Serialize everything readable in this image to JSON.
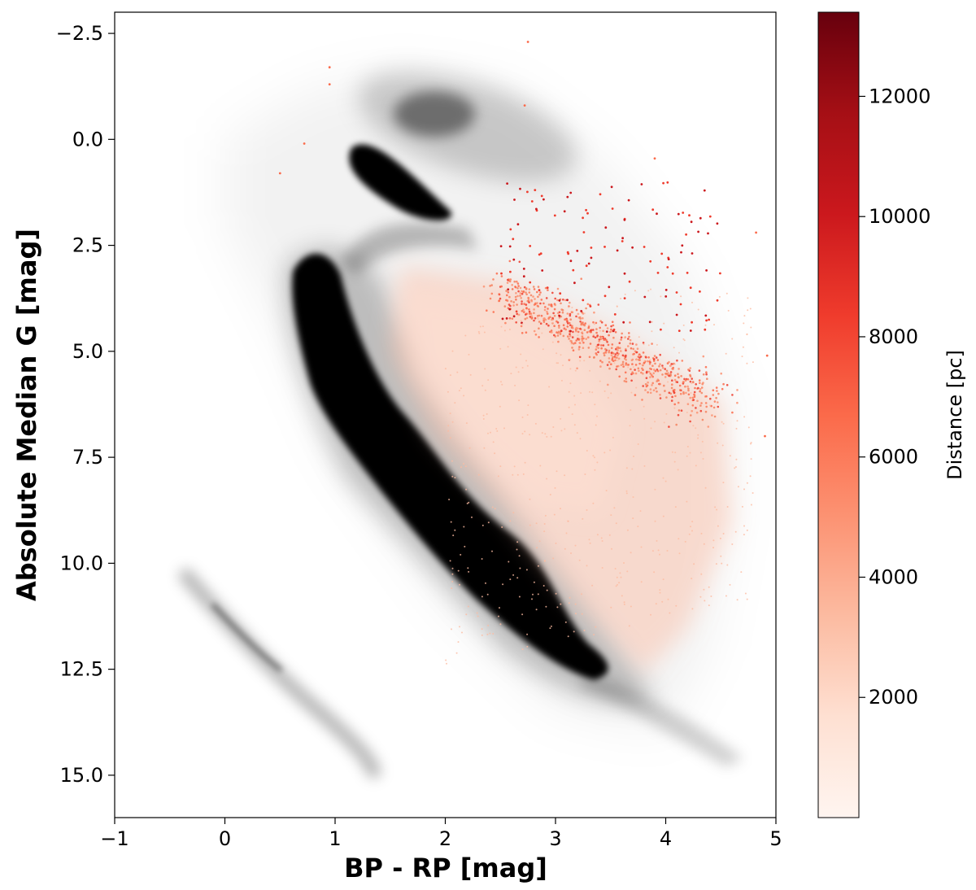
{
  "chart_data": {
    "type": "scatter",
    "title": "",
    "xlabel": "BP - RP [mag]",
    "ylabel": "Absolute Median G [mag]",
    "xlim": [
      -1,
      5
    ],
    "ylim": [
      16,
      -3
    ],
    "y_inverted": true,
    "xticks": [
      -1,
      0,
      1,
      2,
      3,
      4,
      5
    ],
    "xtick_labels": [
      "−1",
      "0",
      "1",
      "2",
      "3",
      "4",
      "5"
    ],
    "yticks": [
      -2.5,
      0.0,
      2.5,
      5.0,
      7.5,
      10.0,
      12.5,
      15.0
    ],
    "ytick_labels": [
      "−2.5",
      "0.0",
      "2.5",
      "5.0",
      "7.5",
      "10.0",
      "12.5",
      "15.0"
    ],
    "grid": false,
    "colormap": "Reds",
    "colorbar": {
      "label": "Distance [pc]",
      "range": [
        0,
        13400
      ],
      "ticks": [
        2000,
        4000,
        6000,
        8000,
        10000,
        12000
      ],
      "tick_labels": [
        "2000",
        "4000",
        "6000",
        "8000",
        "10000",
        "12000"
      ],
      "color_low": "#fff5f0",
      "color_mid": "#fb6a4a",
      "color_high": "#67000d"
    },
    "density_color": "#000000",
    "series": [
      {
        "component": "main sequence (black density)",
        "points": [
          [
            1.0,
            3.0
          ],
          [
            1.15,
            4.5
          ],
          [
            1.3,
            5.8
          ],
          [
            1.55,
            6.8
          ],
          [
            1.8,
            7.6
          ],
          [
            2.05,
            8.6
          ],
          [
            2.35,
            9.5
          ],
          [
            2.7,
            10.6
          ],
          [
            2.95,
            11.6
          ],
          [
            3.3,
            12.4
          ],
          [
            3.55,
            12.8
          ]
        ]
      },
      {
        "component": "red clump (black density)",
        "points": [
          [
            1.2,
            0.3
          ],
          [
            1.4,
            0.7
          ],
          [
            1.6,
            1.1
          ],
          [
            1.85,
            1.5
          ],
          [
            2.0,
            1.8
          ]
        ]
      },
      {
        "component": "white dwarf sequence (grey density)",
        "points": [
          [
            -0.3,
            10.6
          ],
          [
            0.0,
            11.5
          ],
          [
            0.4,
            12.6
          ],
          [
            0.8,
            13.6
          ],
          [
            1.2,
            14.4
          ]
        ]
      },
      {
        "component": "distant stars (red points)",
        "points": [
          [
            2.6,
            3.6
          ],
          [
            2.9,
            4.0
          ],
          [
            3.1,
            4.3
          ],
          [
            3.3,
            4.6
          ],
          [
            3.5,
            4.9
          ],
          [
            3.7,
            5.2
          ],
          [
            3.9,
            5.5
          ],
          [
            4.1,
            5.8
          ],
          [
            4.3,
            6.2
          ]
        ]
      }
    ]
  }
}
